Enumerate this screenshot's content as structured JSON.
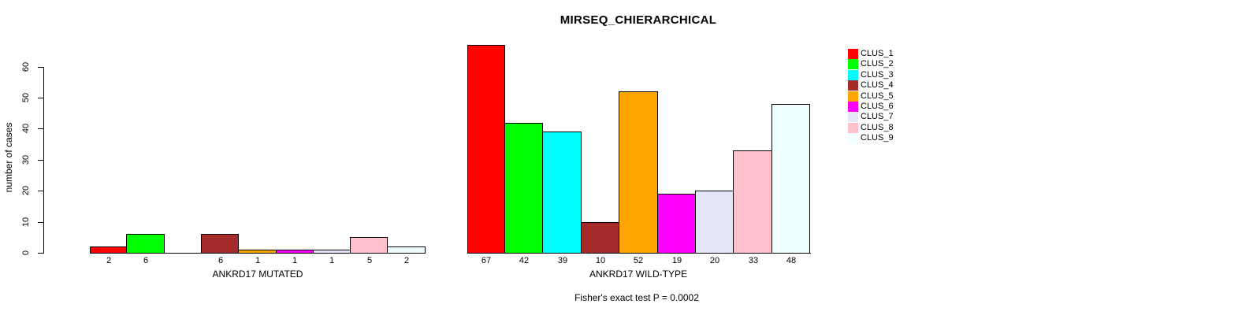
{
  "title": "MIRSEQ_CHIERARCHICAL",
  "y_axis": {
    "label": "number of cases",
    "ticks": [
      0,
      10,
      20,
      30,
      40,
      50,
      60
    ],
    "range": [
      0,
      60
    ]
  },
  "annotation": "Fisher's exact test P = 0.0002",
  "chart_data": {
    "type": "bar",
    "title": "MIRSEQ_CHIERARCHICAL",
    "xlabel": "",
    "ylabel": "number of cases",
    "ylim": [
      0,
      60
    ],
    "yticks": [
      0,
      10,
      20,
      30,
      40,
      50,
      60
    ],
    "grid": false,
    "legend_position": "right",
    "categories": [
      "CLUS_1",
      "CLUS_2",
      "CLUS_3",
      "CLUS_4",
      "CLUS_5",
      "CLUS_6",
      "CLUS_7",
      "CLUS_8",
      "CLUS_9"
    ],
    "colors": [
      "#FF0000",
      "#00FF00",
      "#00FFFF",
      "#A52A2A",
      "#FFA500",
      "#FF00FF",
      "#E6E6FA",
      "#FFC0CB",
      "#F0FFFF"
    ],
    "groups": [
      {
        "label": "ANKRD17 MUTATED",
        "values": [
          2,
          6,
          0,
          6,
          1,
          1,
          1,
          5,
          2
        ]
      },
      {
        "label": "ANKRD17 WILD-TYPE",
        "values": [
          67,
          42,
          39,
          10,
          52,
          19,
          20,
          33,
          48
        ]
      }
    ],
    "bar_value_labels_shown": true,
    "zero_value_labels_hidden": true,
    "annotation": "Fisher's exact test P = 0.0002"
  }
}
